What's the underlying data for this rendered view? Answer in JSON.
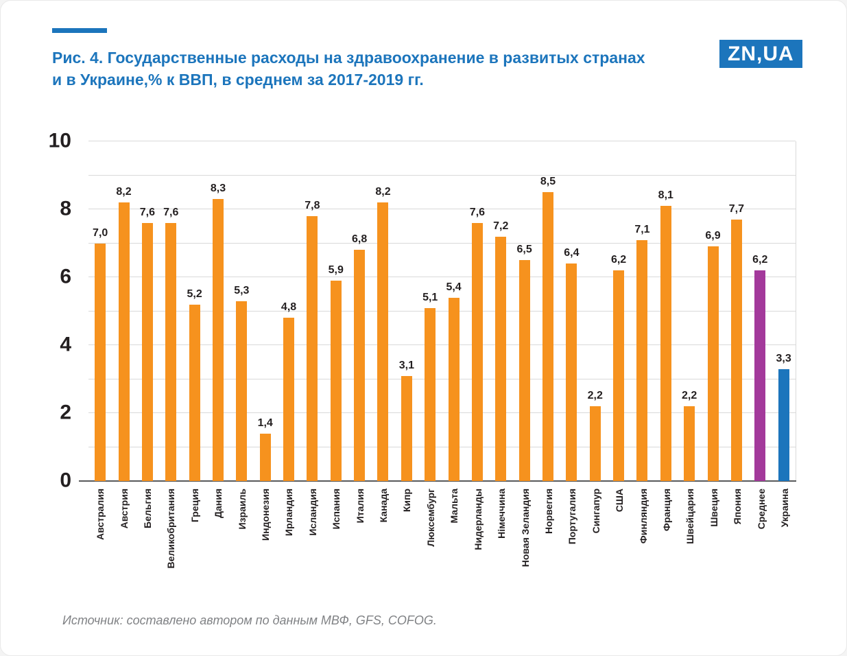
{
  "header": {
    "title_line1": "Рис. 4. Государственные расходы на здравоохранение в развитых странах",
    "title_line2": "и в Украине,% к ВВП, в среднем за 2017-2019 гг.",
    "logo_text": "ZN,UA"
  },
  "footer": {
    "source": "Источник: составлено автором по данным МВФ, GFS, COFOG."
  },
  "colors": {
    "bar_default": "#F6921E",
    "bar_average": "#A3399B",
    "bar_ukraine": "#1C75BC",
    "title_blue": "#1C75BC",
    "grid": "#D9D9D9",
    "baseline": "#58595B",
    "text_dark": "#231F20",
    "source_gray": "#808285"
  },
  "chart_data": {
    "type": "bar",
    "title": "Государственные расходы на здравоохранение в развитых странах и в Украине, % к ВВП, в среднем за 2017-2019 гг.",
    "xlabel": "",
    "ylabel": "% к ВВП",
    "ylim": [
      0,
      10
    ],
    "yticks": [
      0,
      2,
      4,
      6,
      8,
      10
    ],
    "grid": true,
    "grid_step": 1,
    "legend_position": "none",
    "bars": [
      {
        "label": "Австралия",
        "value": 7.0,
        "display": "7,0"
      },
      {
        "label": "Австрия",
        "value": 8.2,
        "display": "8,2"
      },
      {
        "label": "Бельгия",
        "value": 7.6,
        "display": "7,6"
      },
      {
        "label": "Великобритания",
        "value": 7.6,
        "display": "7,6"
      },
      {
        "label": "Греция",
        "value": 5.2,
        "display": "5,2"
      },
      {
        "label": "Дания",
        "value": 8.3,
        "display": "8,3"
      },
      {
        "label": "Израиль",
        "value": 5.3,
        "display": "5,3"
      },
      {
        "label": "Индонезия",
        "value": 1.4,
        "display": "1,4"
      },
      {
        "label": "Ирландия",
        "value": 4.8,
        "display": "4,8"
      },
      {
        "label": "Исландия",
        "value": 7.8,
        "display": "7,8"
      },
      {
        "label": "Испания",
        "value": 5.9,
        "display": "5,9"
      },
      {
        "label": "Италия",
        "value": 6.8,
        "display": "6,8"
      },
      {
        "label": "Канада",
        "value": 8.2,
        "display": "8,2"
      },
      {
        "label": "Кипр",
        "value": 3.1,
        "display": "3,1"
      },
      {
        "label": "Люксембург",
        "value": 5.1,
        "display": "5,1"
      },
      {
        "label": "Мальта",
        "value": 5.4,
        "display": "5,4"
      },
      {
        "label": "Нидерланды",
        "value": 7.6,
        "display": "7,6"
      },
      {
        "label": "Німеччина",
        "value": 7.2,
        "display": "7,2"
      },
      {
        "label": "Новая Зеландия",
        "value": 6.5,
        "display": "6,5"
      },
      {
        "label": "Норвегия",
        "value": 8.5,
        "display": "8,5"
      },
      {
        "label": "Португалия",
        "value": 6.4,
        "display": "6,4"
      },
      {
        "label": "Сингапур",
        "value": 2.2,
        "display": "2,2"
      },
      {
        "label": "США",
        "value": 6.2,
        "display": "6,2"
      },
      {
        "label": "Финляндия",
        "value": 7.1,
        "display": "7,1"
      },
      {
        "label": "Франция",
        "value": 8.1,
        "display": "8,1"
      },
      {
        "label": "Швейцария",
        "value": 2.2,
        "display": "2,2"
      },
      {
        "label": "Швеция",
        "value": 6.9,
        "display": "6,9"
      },
      {
        "label": "Япония",
        "value": 7.7,
        "display": "7,7"
      },
      {
        "label": "Среднее",
        "value": 6.2,
        "display": "6,2",
        "color": "bar_average"
      },
      {
        "label": "Украина",
        "value": 3.3,
        "display": "3,3",
        "color": "bar_ukraine"
      }
    ]
  }
}
